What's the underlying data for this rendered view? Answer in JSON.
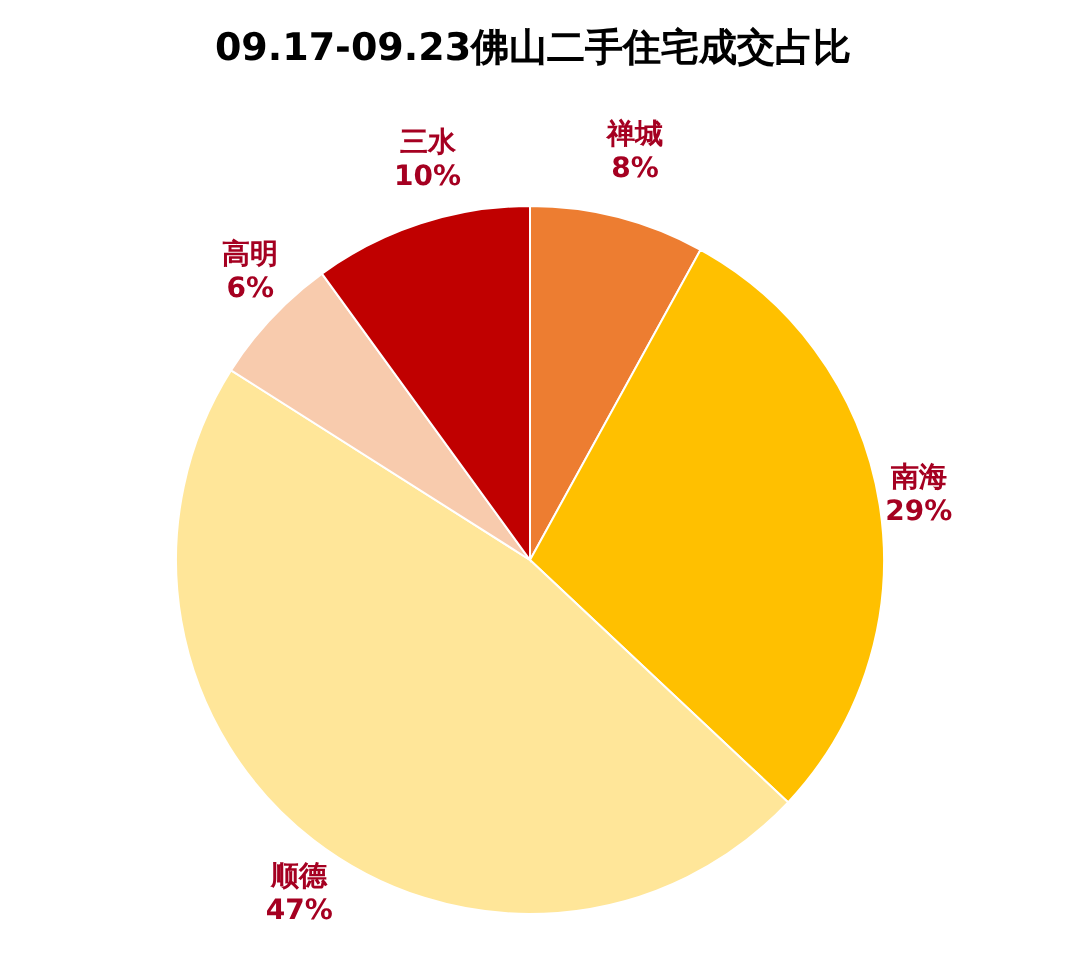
{
  "chart_data": {
    "type": "pie",
    "title": "09.17-09.23佛山二手住宅成交占比",
    "categories": [
      "禅城",
      "南海",
      "顺德",
      "高明",
      "三水"
    ],
    "values": [
      8,
      29,
      47,
      6,
      10
    ],
    "colors": [
      "#ed7d31",
      "#ffc000",
      "#ffe699",
      "#f8cbad",
      "#c00000"
    ],
    "value_labels": [
      "8%",
      "29%",
      "47%",
      "6%",
      "10%"
    ]
  }
}
